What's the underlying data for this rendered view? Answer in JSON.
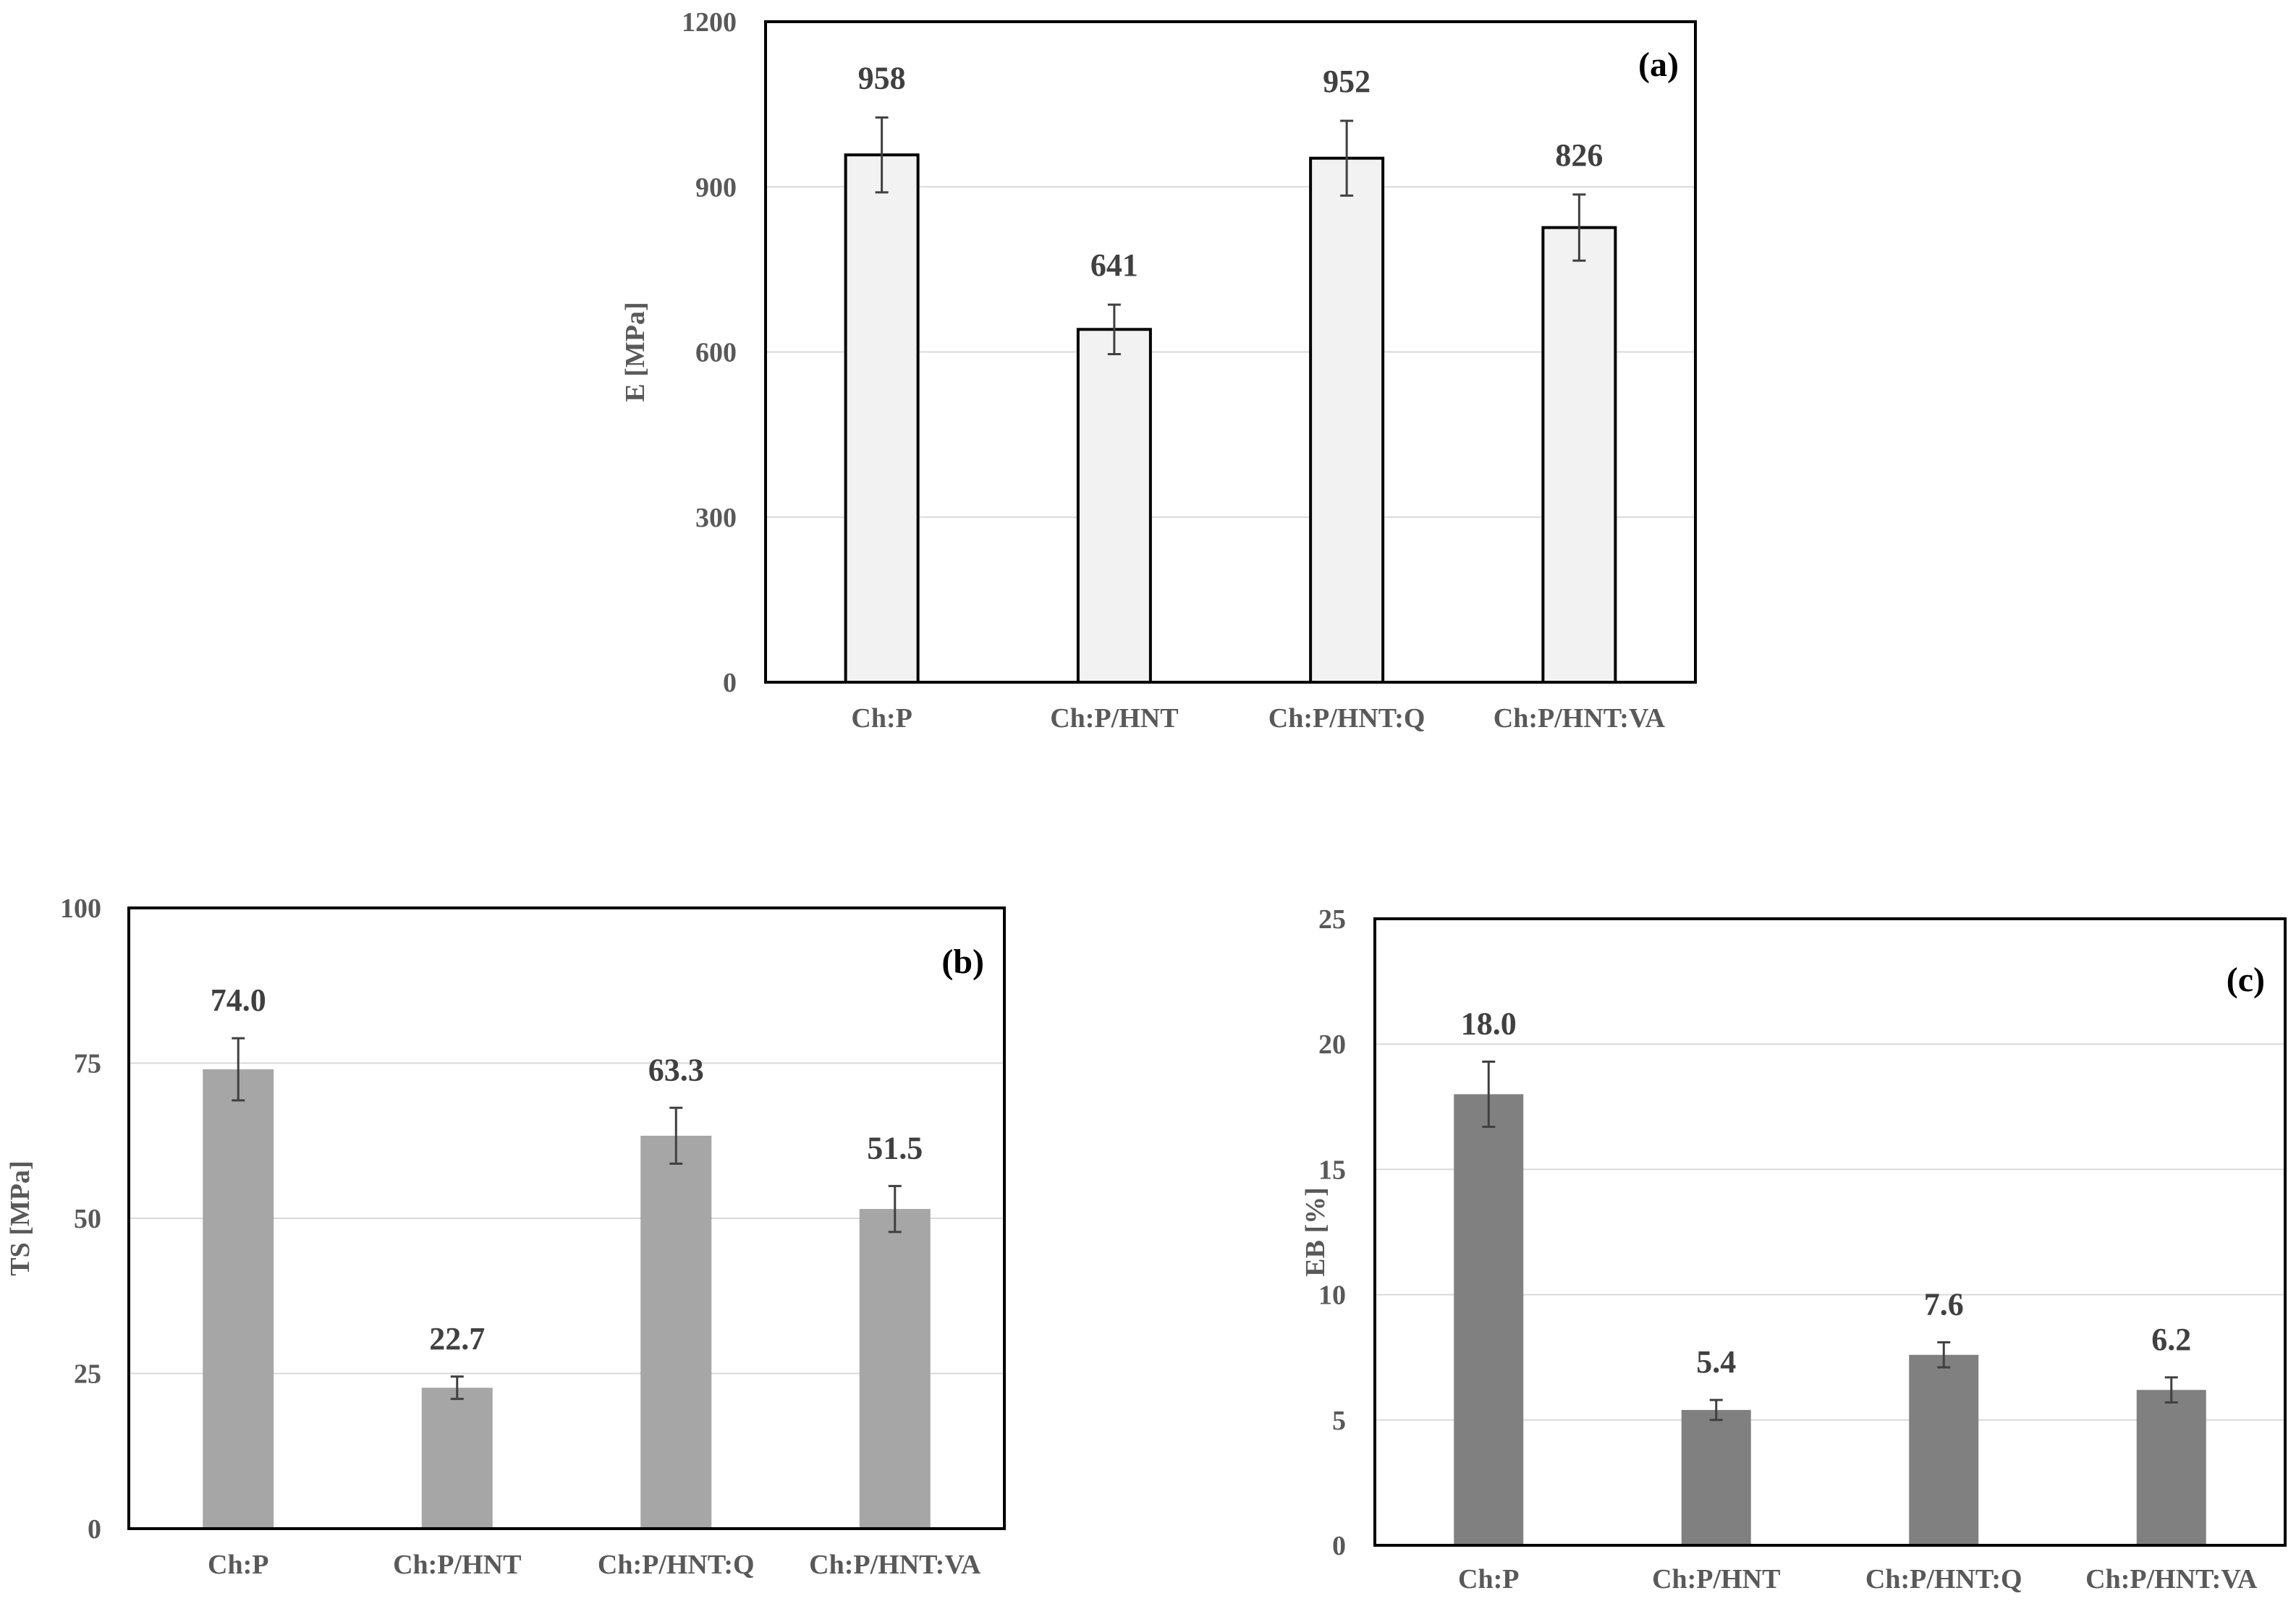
{
  "chart_data": [
    {
      "type": "bar",
      "panel_label": "(a)",
      "title": "",
      "xlabel": "",
      "ylabel": "E [MPa]",
      "ylim": [
        0,
        1200
      ],
      "yticks": [
        "0",
        "300",
        "600",
        "900",
        "1200"
      ],
      "categories": [
        "Ch:P",
        "Ch:P/HNT",
        "Ch:P/HNT:Q",
        "Ch:P/HNT:VA"
      ],
      "values": [
        958,
        641,
        952,
        826
      ],
      "errors": [
        68,
        45,
        68,
        60
      ],
      "data_labels": [
        "958",
        "641",
        "952",
        "826"
      ],
      "bar_color": "#f2f2f2",
      "bar_outline": "#000000",
      "grid": true
    },
    {
      "type": "bar",
      "panel_label": "(b)",
      "title": "",
      "xlabel": "",
      "ylabel": "TS [MPa]",
      "ylim": [
        0,
        100
      ],
      "yticks": [
        "0",
        "25",
        "50",
        "75",
        "100"
      ],
      "categories": [
        "Ch:P",
        "Ch:P/HNT",
        "Ch:P/HNT:Q",
        "Ch:P/HNT:VA"
      ],
      "values": [
        74.0,
        22.7,
        63.3,
        51.5
      ],
      "errors": [
        5.0,
        1.8,
        4.5,
        3.7
      ],
      "data_labels": [
        "74.0",
        "22.7",
        "63.3",
        "51.5"
      ],
      "bar_color": "#a6a6a6",
      "bar_outline": "none",
      "grid": true
    },
    {
      "type": "bar",
      "panel_label": "(c)",
      "title": "",
      "xlabel": "",
      "ylabel": "EB [%]",
      "ylim": [
        0,
        25
      ],
      "yticks": [
        "0",
        "5",
        "10",
        "15",
        "20",
        "25"
      ],
      "categories": [
        "Ch:P",
        "Ch:P/HNT",
        "Ch:P/HNT:Q",
        "Ch:P/HNT:VA"
      ],
      "values": [
        18.0,
        5.4,
        7.6,
        6.2
      ],
      "errors": [
        1.3,
        0.4,
        0.5,
        0.5
      ],
      "data_labels": [
        "18.0",
        "5.4",
        "7.6",
        "6.2"
      ],
      "bar_color": "#808080",
      "bar_outline": "none",
      "grid": true
    }
  ]
}
